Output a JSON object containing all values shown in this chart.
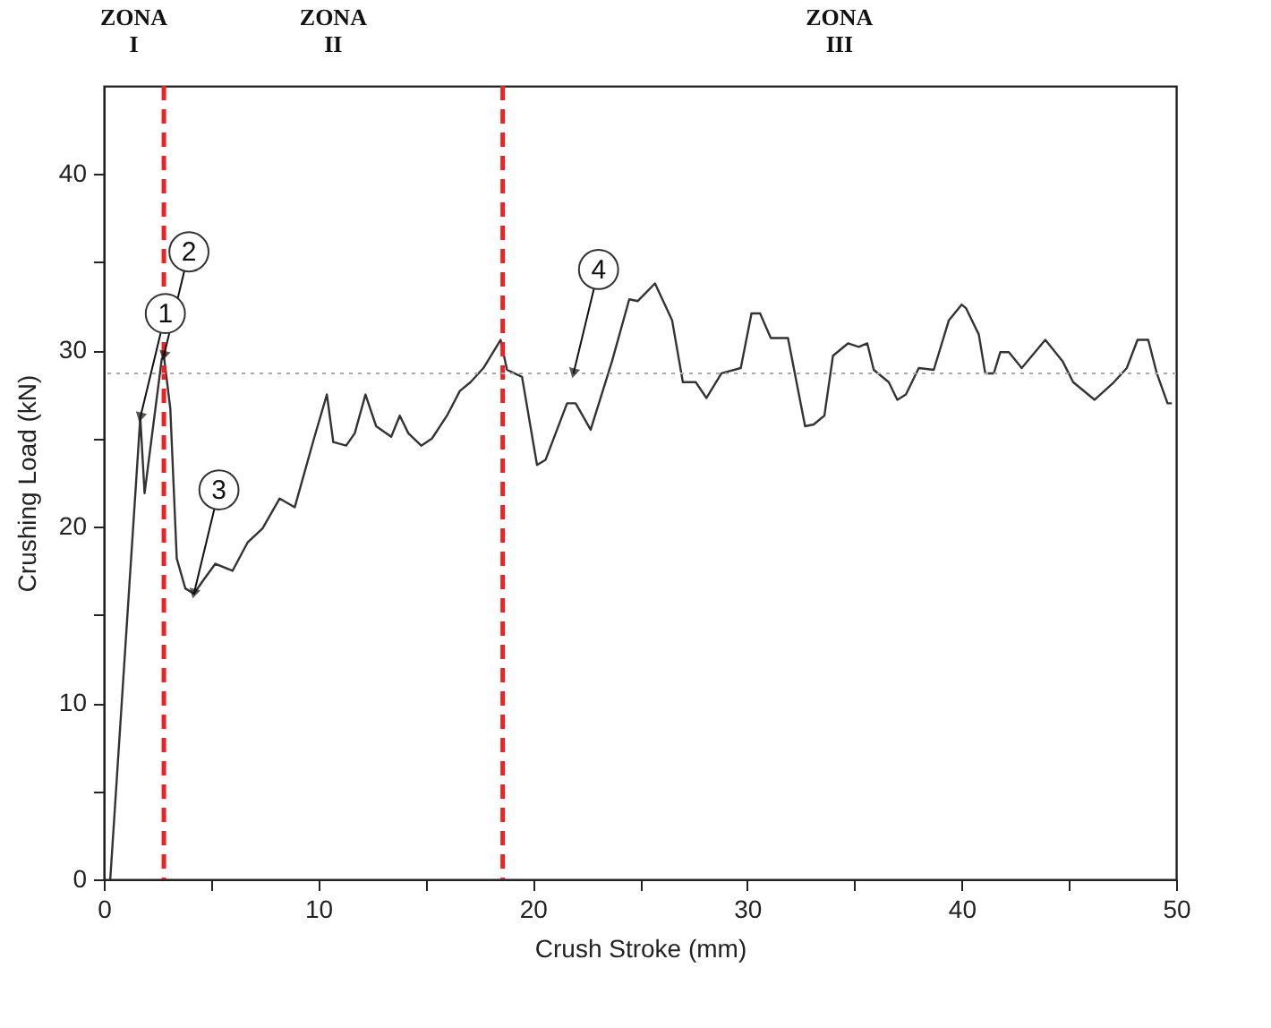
{
  "chart_data": {
    "type": "line",
    "xlabel": "Crush Stroke (mm)",
    "ylabel": "Crushing Load (kN)",
    "xlim": [
      0,
      50
    ],
    "ylim": [
      0,
      45
    ],
    "xticks": [
      0,
      {
        "value": 5,
        "label": null
      },
      10,
      {
        "value": 15,
        "label": null
      },
      20,
      {
        "value": 25,
        "label": null
      },
      30,
      {
        "value": 35,
        "label": null
      },
      40,
      {
        "value": 45,
        "label": null
      },
      50
    ],
    "yticks": [
      0,
      {
        "value": 5,
        "label": null
      },
      10,
      {
        "value": 15,
        "label": null
      },
      20,
      {
        "value": 25,
        "label": null
      },
      30,
      {
        "value": 35,
        "label": null
      },
      40
    ],
    "grid": false,
    "marker": "none",
    "line_style": "solid",
    "series": [
      {
        "color": "#333333",
        "x": [
          0.3,
          1.7,
          1.9,
          2.7,
          2.8,
          3.1,
          3.4,
          3.8,
          4.2,
          4.6,
          5.2,
          6.0,
          6.7,
          7.4,
          8.2,
          8.9,
          9.8,
          10.4,
          10.7,
          11.3,
          11.7,
          12.2,
          12.7,
          13.4,
          13.8,
          14.2,
          14.8,
          15.3,
          16.0,
          16.6,
          17.1,
          17.7,
          18.5,
          18.8,
          19.5,
          20.2,
          20.6,
          21.6,
          22.0,
          22.7,
          23.7,
          24.5,
          24.9,
          25.7,
          26.5,
          27.0,
          27.6,
          28.1,
          28.8,
          29.7,
          30.2,
          30.6,
          31.1,
          31.9,
          32.7,
          33.1,
          33.6,
          34.0,
          34.7,
          35.2,
          35.6,
          35.9,
          36.6,
          37.0,
          37.4,
          38.0,
          38.7,
          39.4,
          40.0,
          40.2,
          40.8,
          41.1,
          41.5,
          41.8,
          42.2,
          42.8,
          43.9,
          44.7,
          45.2,
          46.2,
          47.1,
          47.7,
          48.2,
          48.7,
          49.1,
          49.6,
          49.8
        ],
        "values": [
          0,
          26.2,
          21.9,
          29.5,
          29.7,
          26.7,
          18.2,
          16.5,
          16.2,
          16.9,
          17.9,
          17.5,
          19.1,
          19.9,
          21.6,
          21.1,
          25.0,
          27.5,
          24.8,
          24.6,
          25.3,
          27.5,
          25.7,
          25.1,
          26.3,
          25.3,
          24.6,
          25.0,
          26.3,
          27.7,
          28.2,
          29.0,
          30.6,
          28.9,
          28.5,
          23.5,
          23.8,
          27.0,
          27.0,
          25.5,
          29.4,
          32.9,
          32.8,
          33.8,
          31.7,
          28.2,
          28.2,
          27.3,
          28.7,
          29.0,
          32.1,
          32.1,
          30.7,
          30.7,
          25.7,
          25.8,
          26.3,
          29.7,
          30.4,
          30.2,
          30.4,
          28.9,
          28.2,
          27.2,
          27.5,
          29.0,
          28.9,
          31.7,
          32.6,
          32.4,
          30.9,
          28.7,
          28.7,
          29.9,
          29.9,
          29.0,
          30.6,
          29.4,
          28.2,
          27.2,
          28.2,
          29.0,
          30.6,
          30.6,
          28.7,
          27.0,
          27.0
        ]
      }
    ],
    "ref_lines": [
      {
        "axis": "x",
        "value": 2.8,
        "color": "#ee2222",
        "line_style": "dashed"
      },
      {
        "axis": "x",
        "value": 18.6,
        "color": "#ee2222",
        "line_style": "dashed"
      },
      {
        "axis": "y",
        "value": 28.7,
        "color": "#aaaaaa",
        "line_style": "dotted"
      }
    ],
    "annotations": [
      "ZONA I",
      "ZONA II",
      "ZONA III",
      {
        "text": "1",
        "x": 1.7,
        "y": 26.2
      },
      {
        "text": "2",
        "x": 2.8,
        "y": 29.7
      },
      {
        "text": "3",
        "x": 4.2,
        "y": 16.2
      },
      {
        "text": "4",
        "x": 21.9,
        "y": 28.7
      }
    ]
  }
}
